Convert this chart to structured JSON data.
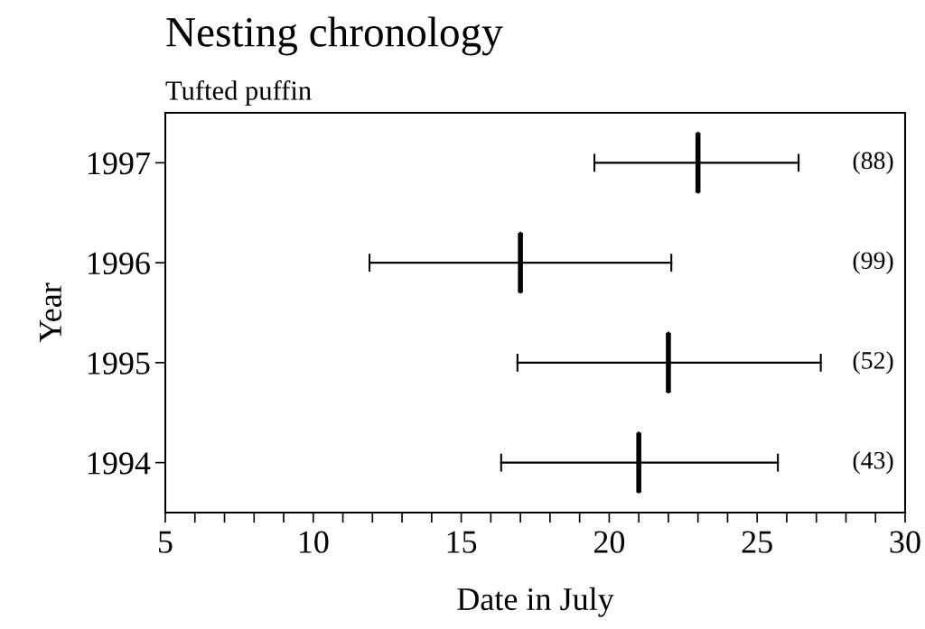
{
  "chart_data": {
    "type": "box",
    "orientation": "horizontal",
    "title": "Nesting chronology",
    "subtitle": "Tufted puffin",
    "xlabel": "Date in July",
    "ylabel": "Year",
    "categories": [
      "1997",
      "1996",
      "1995",
      "1994"
    ],
    "boxes": [
      {
        "low": 19.5,
        "q1": 23.0,
        "median": 23.0,
        "q3": 23.0,
        "high": 26.4
      },
      {
        "low": 11.9,
        "q1": 17.0,
        "median": 17.0,
        "q3": 17.0,
        "high": 22.1
      },
      {
        "low": 16.9,
        "q1": 22.0,
        "median": 22.0,
        "q3": 22.0,
        "high": 27.15
      },
      {
        "low": 16.35,
        "q1": 21.0,
        "median": 21.0,
        "q3": 21.0,
        "high": 25.7
      }
    ],
    "color": "#000000",
    "xlim": [
      5,
      30
    ],
    "xticks": [
      5,
      {
        "value": 6,
        "label": null
      },
      {
        "value": 7,
        "label": null
      },
      {
        "value": 8,
        "label": null
      },
      {
        "value": 9,
        "label": null
      },
      10,
      {
        "value": 11,
        "label": null
      },
      {
        "value": 12,
        "label": null
      },
      {
        "value": 13,
        "label": null
      },
      {
        "value": 14,
        "label": null
      },
      15,
      {
        "value": 16,
        "label": null
      },
      {
        "value": 17,
        "label": null
      },
      {
        "value": 18,
        "label": null
      },
      {
        "value": 19,
        "label": null
      },
      20,
      {
        "value": 21,
        "label": null
      },
      {
        "value": 22,
        "label": null
      },
      {
        "value": 23,
        "label": null
      },
      {
        "value": 24,
        "label": null
      },
      25,
      {
        "value": 26,
        "label": null
      },
      {
        "value": 27,
        "label": null
      },
      {
        "value": 28,
        "label": null
      },
      {
        "value": 29,
        "label": null
      },
      30
    ],
    "annotations": [
      "(88)",
      "(99)",
      "(52)",
      "(43)"
    ],
    "grid": false,
    "legend": false
  }
}
